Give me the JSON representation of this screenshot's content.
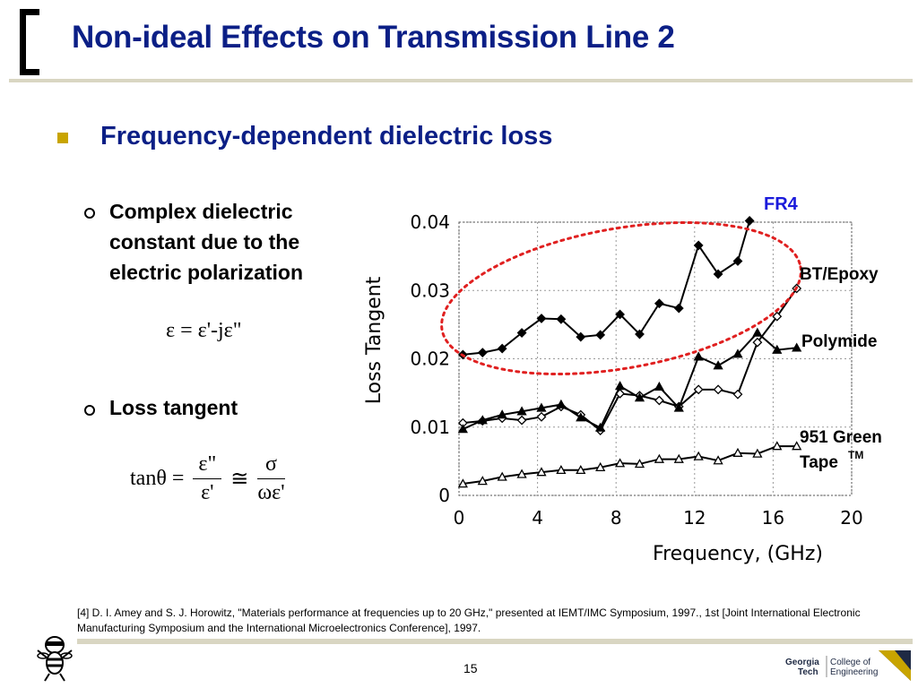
{
  "title": "Non-ideal Effects on Transmission Line 2",
  "bullet": "Frequency-dependent dielectric loss",
  "subbullets": [
    {
      "text": "Complex dielectric\nconstant due to the\nelectric polarization"
    },
    {
      "text": "Loss tangent"
    }
  ],
  "equations": {
    "complex_permittivity": "ε = ε'-jε\"",
    "loss_tangent": {
      "lhs": "tanθ =",
      "frac1_num": "ε\"",
      "frac1_den": "ε'",
      "approx": "≅",
      "frac2_num": "σ",
      "frac2_den": "ωε'"
    }
  },
  "chart_data": {
    "type": "line",
    "xlabel": "Frequency, (GHz)",
    "ylabel": "Loss Tangent",
    "xlim": [
      0,
      20
    ],
    "ylim": [
      0,
      0.04
    ],
    "xticks": [
      "0",
      "4",
      "8",
      "12",
      "16",
      "20"
    ],
    "yticks": [
      "0",
      "0.01",
      "0.02",
      "0.03",
      "0.04"
    ],
    "grid": true,
    "series": [
      {
        "name": "FR4",
        "color": "#1a1adb",
        "marker": "diamond-filled",
        "x": [
          0.2,
          1.2,
          2.2,
          3.2,
          4.2,
          5.2,
          6.2,
          7.2,
          8.2,
          9.2,
          10.2,
          11.2,
          12.2,
          13.2,
          14.2,
          14.8
        ],
        "y": [
          0.0206,
          0.0209,
          0.0215,
          0.0238,
          0.0259,
          0.0258,
          0.0232,
          0.0235,
          0.0265,
          0.0236,
          0.0281,
          0.0274,
          0.0366,
          0.0324,
          0.0343,
          0.0402
        ]
      },
      {
        "name": "BT/Epoxy",
        "color": "#000000",
        "marker": "diamond-open",
        "x": [
          0.2,
          1.2,
          2.2,
          3.2,
          4.2,
          5.2,
          6.2,
          7.2,
          8.2,
          9.2,
          10.2,
          11.2,
          12.2,
          13.2,
          14.2,
          15.2,
          16.2,
          17.2
        ],
        "y": [
          0.0106,
          0.0109,
          0.0113,
          0.011,
          0.0115,
          0.013,
          0.0118,
          0.0095,
          0.0149,
          0.0146,
          0.0139,
          0.013,
          0.0155,
          0.0155,
          0.0148,
          0.0224,
          0.0262,
          0.0303
        ]
      },
      {
        "name": "Polymide",
        "color": "#000000",
        "marker": "triangle-filled",
        "x": [
          0.2,
          1.2,
          2.2,
          3.2,
          4.2,
          5.2,
          6.2,
          7.2,
          8.2,
          9.2,
          10.2,
          11.2,
          12.2,
          13.2,
          14.2,
          15.2,
          16.2,
          17.2
        ],
        "y": [
          0.0097,
          0.011,
          0.0118,
          0.0123,
          0.0128,
          0.0133,
          0.0114,
          0.0099,
          0.016,
          0.0143,
          0.0159,
          0.0128,
          0.0203,
          0.019,
          0.0207,
          0.0238,
          0.0213,
          0.0216
        ]
      },
      {
        "name": "951 Green Tape™",
        "color": "#000000",
        "marker": "triangle-open",
        "x": [
          0.2,
          1.2,
          2.2,
          3.2,
          4.2,
          5.2,
          6.2,
          7.2,
          8.2,
          9.2,
          10.2,
          11.2,
          12.2,
          13.2,
          14.2,
          15.2,
          16.2,
          17.2
        ],
        "y": [
          0.0017,
          0.0021,
          0.0027,
          0.0031,
          0.0034,
          0.0037,
          0.0037,
          0.0041,
          0.0047,
          0.0046,
          0.0053,
          0.0053,
          0.0057,
          0.0051,
          0.0062,
          0.0061,
          0.0072,
          0.0072
        ]
      }
    ],
    "legend_labels": [
      "FR4",
      "BT/Epoxy",
      "Polymide",
      "951 Green",
      "Tape",
      "TM"
    ]
  },
  "reference": "[4] D. I. Amey and S. J. Horowitz, \"Materials performance at frequencies up to 20 GHz,\" presented at IEMT/IMC Symposium, 1997., 1st [Joint International Electronic Manufacturing Symposium and the International Microelectronics Conference], 1997.",
  "footer": {
    "page_number": "15",
    "logo_line1": "Georgia",
    "logo_line2": "Tech",
    "logo_line3": "College of",
    "logo_line4": "Engineering"
  },
  "colors": {
    "title": "#0b1f86",
    "bullet_square": "#c8a400",
    "highlight_ellipse": "#e02020",
    "fr4_label": "#1a1adb"
  }
}
